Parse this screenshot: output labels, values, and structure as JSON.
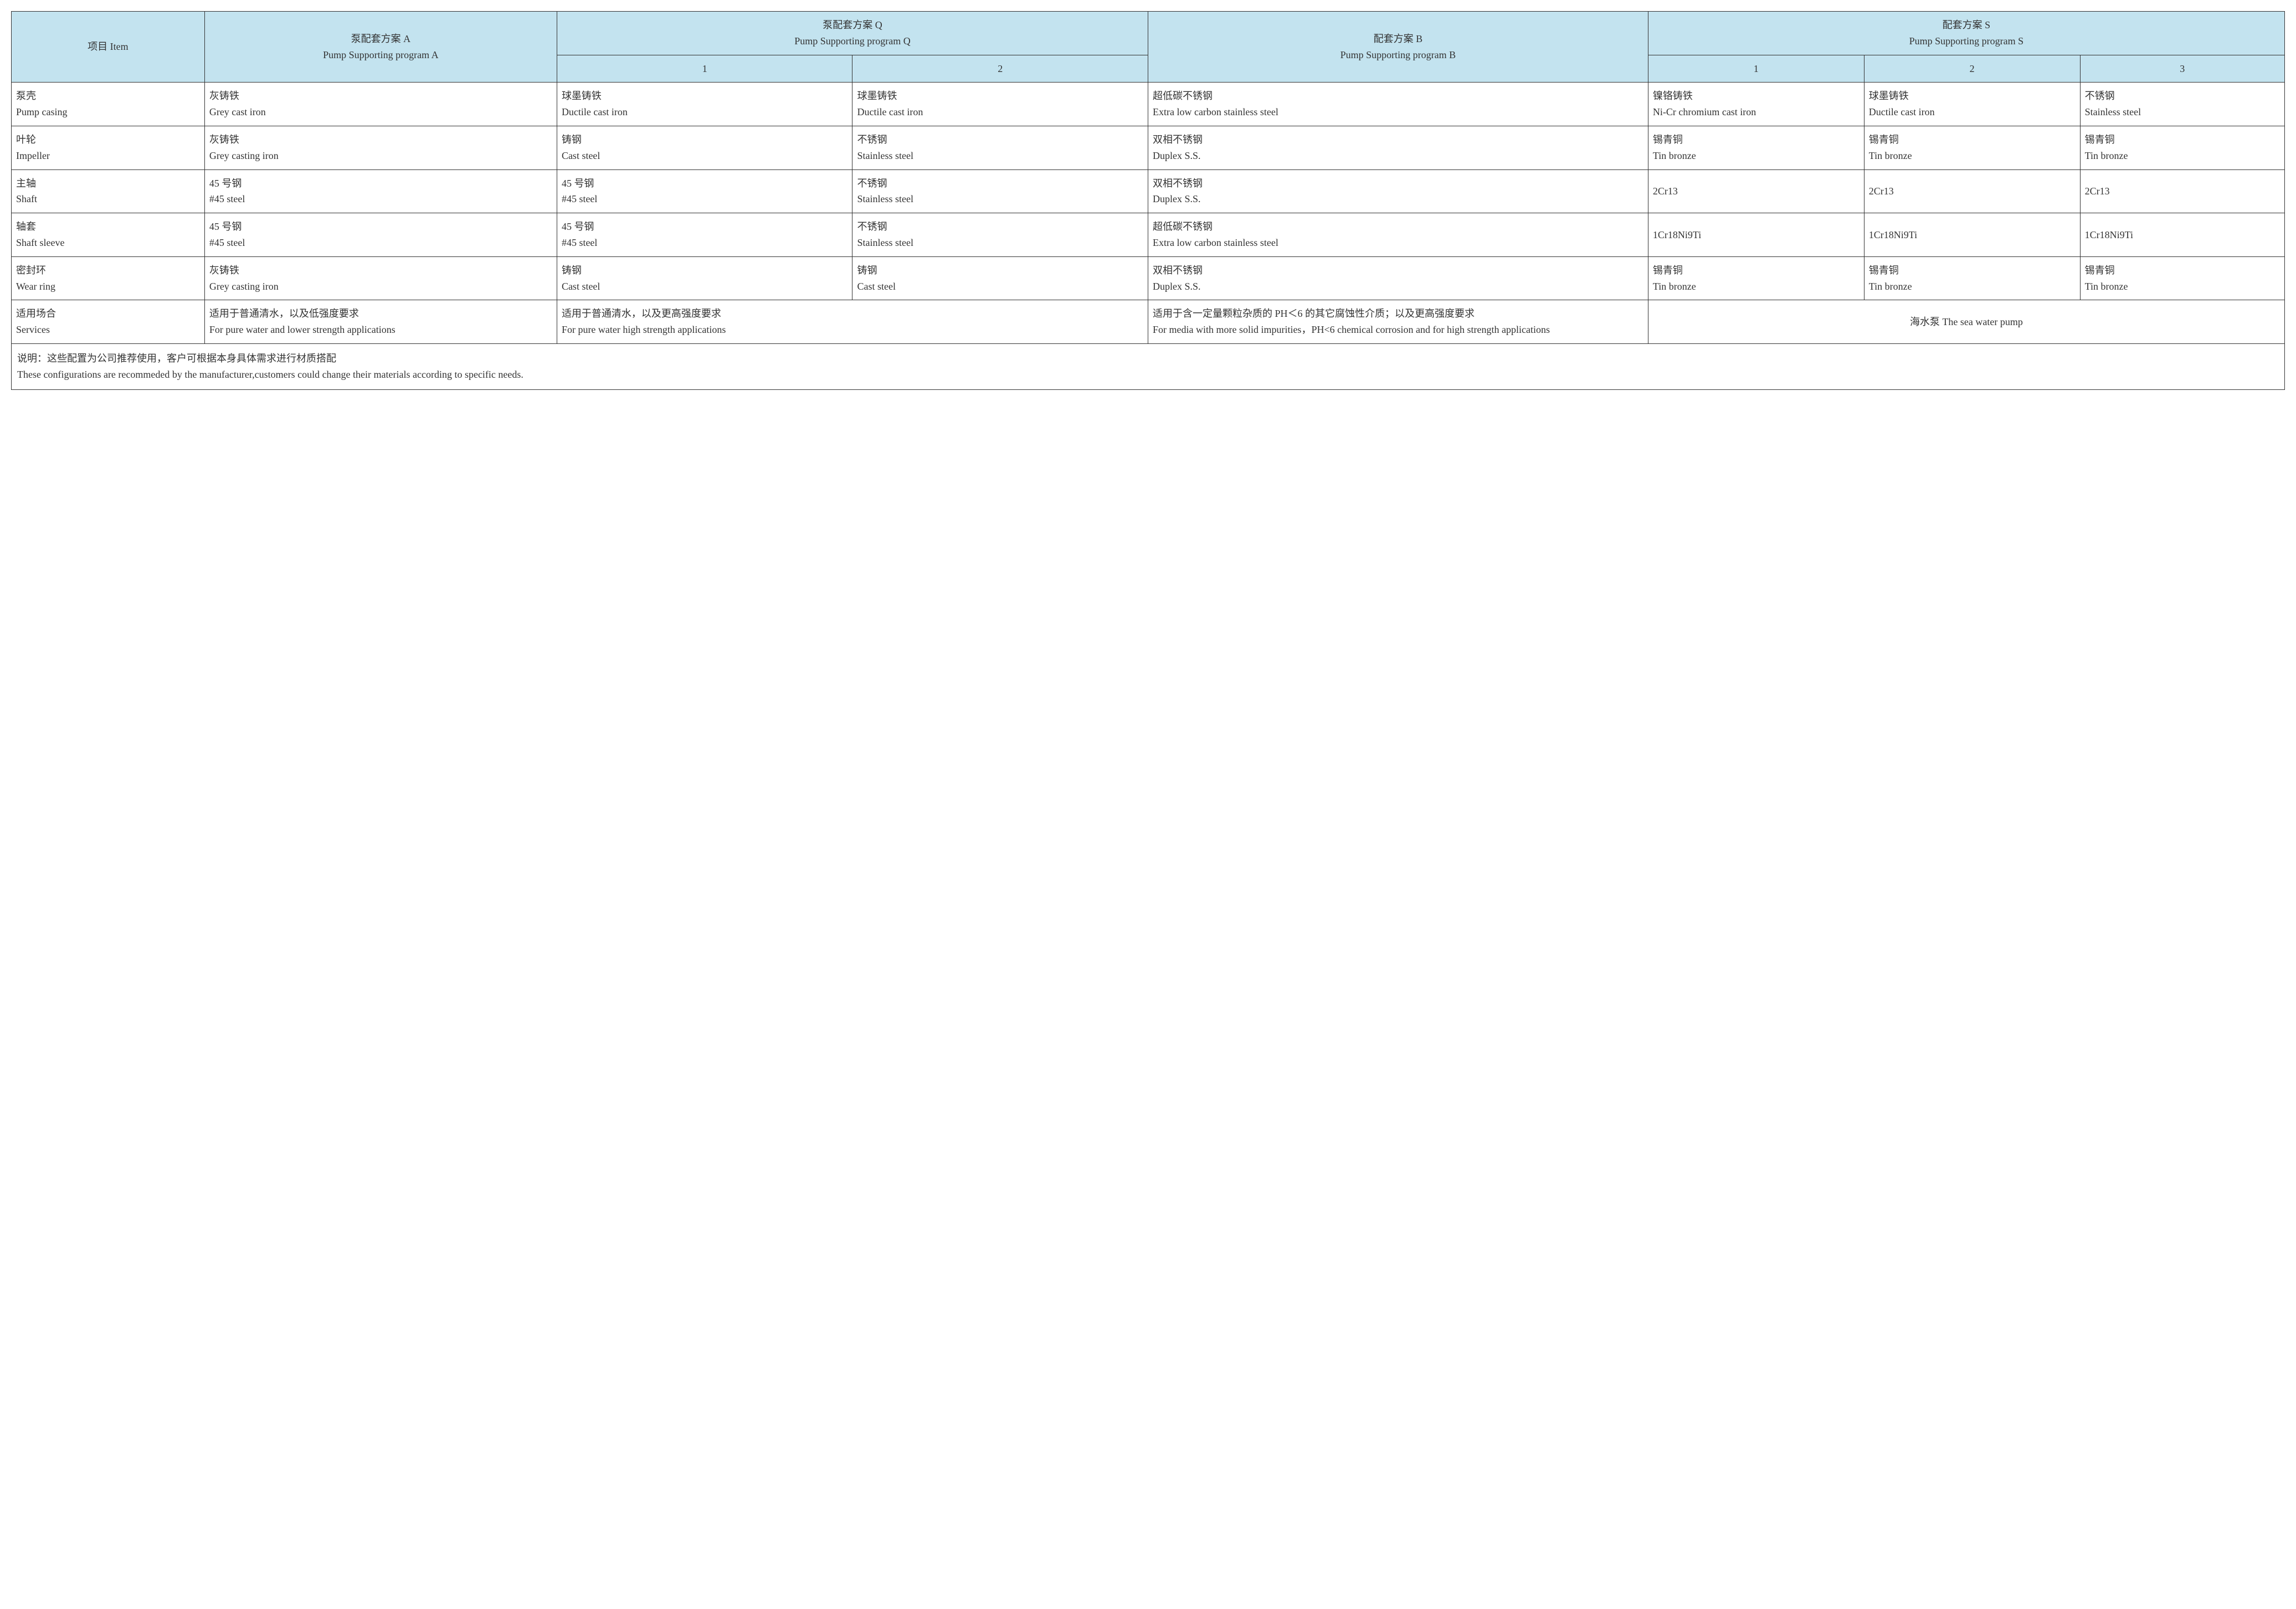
{
  "colors": {
    "header_bg": "#c3e3ef",
    "border": "#333333",
    "text": "#333333",
    "page_bg": "#ffffff"
  },
  "typography": {
    "base_fontsize_pt": 14,
    "line_height": 1.6,
    "font_family": "SimSun / Times New Roman"
  },
  "headers": {
    "item": {
      "cn": "项目 Item"
    },
    "program_a": {
      "cn": "泵配套方案 A",
      "en": "Pump Supporting program A"
    },
    "program_q": {
      "cn": "泵配套方案 Q",
      "en": "Pump Supporting program Q"
    },
    "program_b": {
      "cn": "配套方案 B",
      "en": "Pump Supporting program B"
    },
    "program_s": {
      "cn": "配套方案 S",
      "en": "Pump Supporting program S"
    },
    "q_sub": [
      "1",
      "2"
    ],
    "s_sub": [
      "1",
      "2",
      "3"
    ]
  },
  "rows": [
    {
      "item": {
        "cn": "泵壳",
        "en": "Pump casing"
      },
      "a": {
        "cn": "灰铸铁",
        "en": "Grey cast iron"
      },
      "q1": {
        "cn": "球墨铸铁",
        "en": "Ductile cast iron"
      },
      "q2": {
        "cn": "球墨铸铁",
        "en": "Ductile cast iron"
      },
      "b": {
        "cn": "超低碳不锈钢",
        "en": "Extra low carbon stainless steel"
      },
      "s1": {
        "cn": "镍铬铸铁",
        "en": "Ni-Cr chromium cast iron"
      },
      "s2": {
        "cn": "球墨铸铁",
        "en": "Ductile cast iron"
      },
      "s3": {
        "cn": "不锈钢",
        "en": "Stainless steel"
      }
    },
    {
      "item": {
        "cn": "叶轮",
        "en": "Impeller"
      },
      "a": {
        "cn": "灰铸铁",
        "en": "Grey casting iron"
      },
      "q1": {
        "cn": "铸钢",
        "en": "Cast steel"
      },
      "q2": {
        "cn": "不锈钢",
        "en": "Stainless steel"
      },
      "b": {
        "cn": "双相不锈钢",
        "en": "Duplex S.S."
      },
      "s1": {
        "cn": "锡青铜",
        "en": "Tin bronze"
      },
      "s2": {
        "cn": "锡青铜",
        "en": "Tin bronze"
      },
      "s3": {
        "cn": "锡青铜",
        "en": "Tin bronze"
      }
    },
    {
      "item": {
        "cn": "主轴",
        "en": "Shaft"
      },
      "a": {
        "cn": "45 号钢",
        "en": "#45 steel"
      },
      "q1": {
        "cn": "45 号钢",
        "en": "#45 steel"
      },
      "q2": {
        "cn": "不锈钢",
        "en": "Stainless steel"
      },
      "b": {
        "cn": "双相不锈钢",
        "en": "Duplex S.S."
      },
      "s1": {
        "cn": "2Cr13"
      },
      "s2": {
        "cn": "2Cr13"
      },
      "s3": {
        "cn": "2Cr13"
      }
    },
    {
      "item": {
        "cn": "轴套",
        "en": "Shaft sleeve"
      },
      "a": {
        "cn": "45 号钢",
        "en": "#45 steel"
      },
      "q1": {
        "cn": "45 号钢",
        "en": "#45 steel"
      },
      "q2": {
        "cn": "不锈钢",
        "en": "Stainless steel"
      },
      "b": {
        "cn": "超低碳不锈钢",
        "en": "Extra low carbon stainless steel"
      },
      "s1": {
        "cn": "1Cr18Ni9Ti"
      },
      "s2": {
        "cn": "1Cr18Ni9Ti"
      },
      "s3": {
        "cn": "1Cr18Ni9Ti"
      }
    },
    {
      "item": {
        "cn": "密封环",
        "en": "Wear ring"
      },
      "a": {
        "cn": "灰铸铁",
        "en": "Grey casting iron"
      },
      "q1": {
        "cn": "铸钢",
        "en": "Cast steel"
      },
      "q2": {
        "cn": "铸钢",
        "en": "Cast steel"
      },
      "b": {
        "cn": "双相不锈钢",
        "en": "Duplex S.S."
      },
      "s1": {
        "cn": "锡青铜",
        "en": "Tin bronze"
      },
      "s2": {
        "cn": "锡青铜",
        "en": "Tin bronze"
      },
      "s3": {
        "cn": "锡青铜",
        "en": "Tin bronze"
      }
    }
  ],
  "services": {
    "item": {
      "cn": "适用场合",
      "en": "Services"
    },
    "a": {
      "cn": "适用于普通清水，以及低强度要求",
      "en": "For pure water and lower strength applications"
    },
    "q": {
      "cn": "适用于普通清水，以及更高强度要求",
      "en": "For pure water  high strength applications"
    },
    "b": {
      "cn": "适用于含一定量颗粒杂质的 PH＜6 的其它腐蚀性介质；以及更高强度要求",
      "en": "For media with more solid impurities，PH<6 chemical corrosion and for high strength applications"
    },
    "s": {
      "cn": "海水泵 The sea water pump"
    }
  },
  "footnote": {
    "cn": "说明：这些配置为公司推荐使用，客户可根据本身具体需求进行材质搭配",
    "en": "These configurations are recommeded by the manufacturer,customers could change their materials according to specific needs."
  }
}
